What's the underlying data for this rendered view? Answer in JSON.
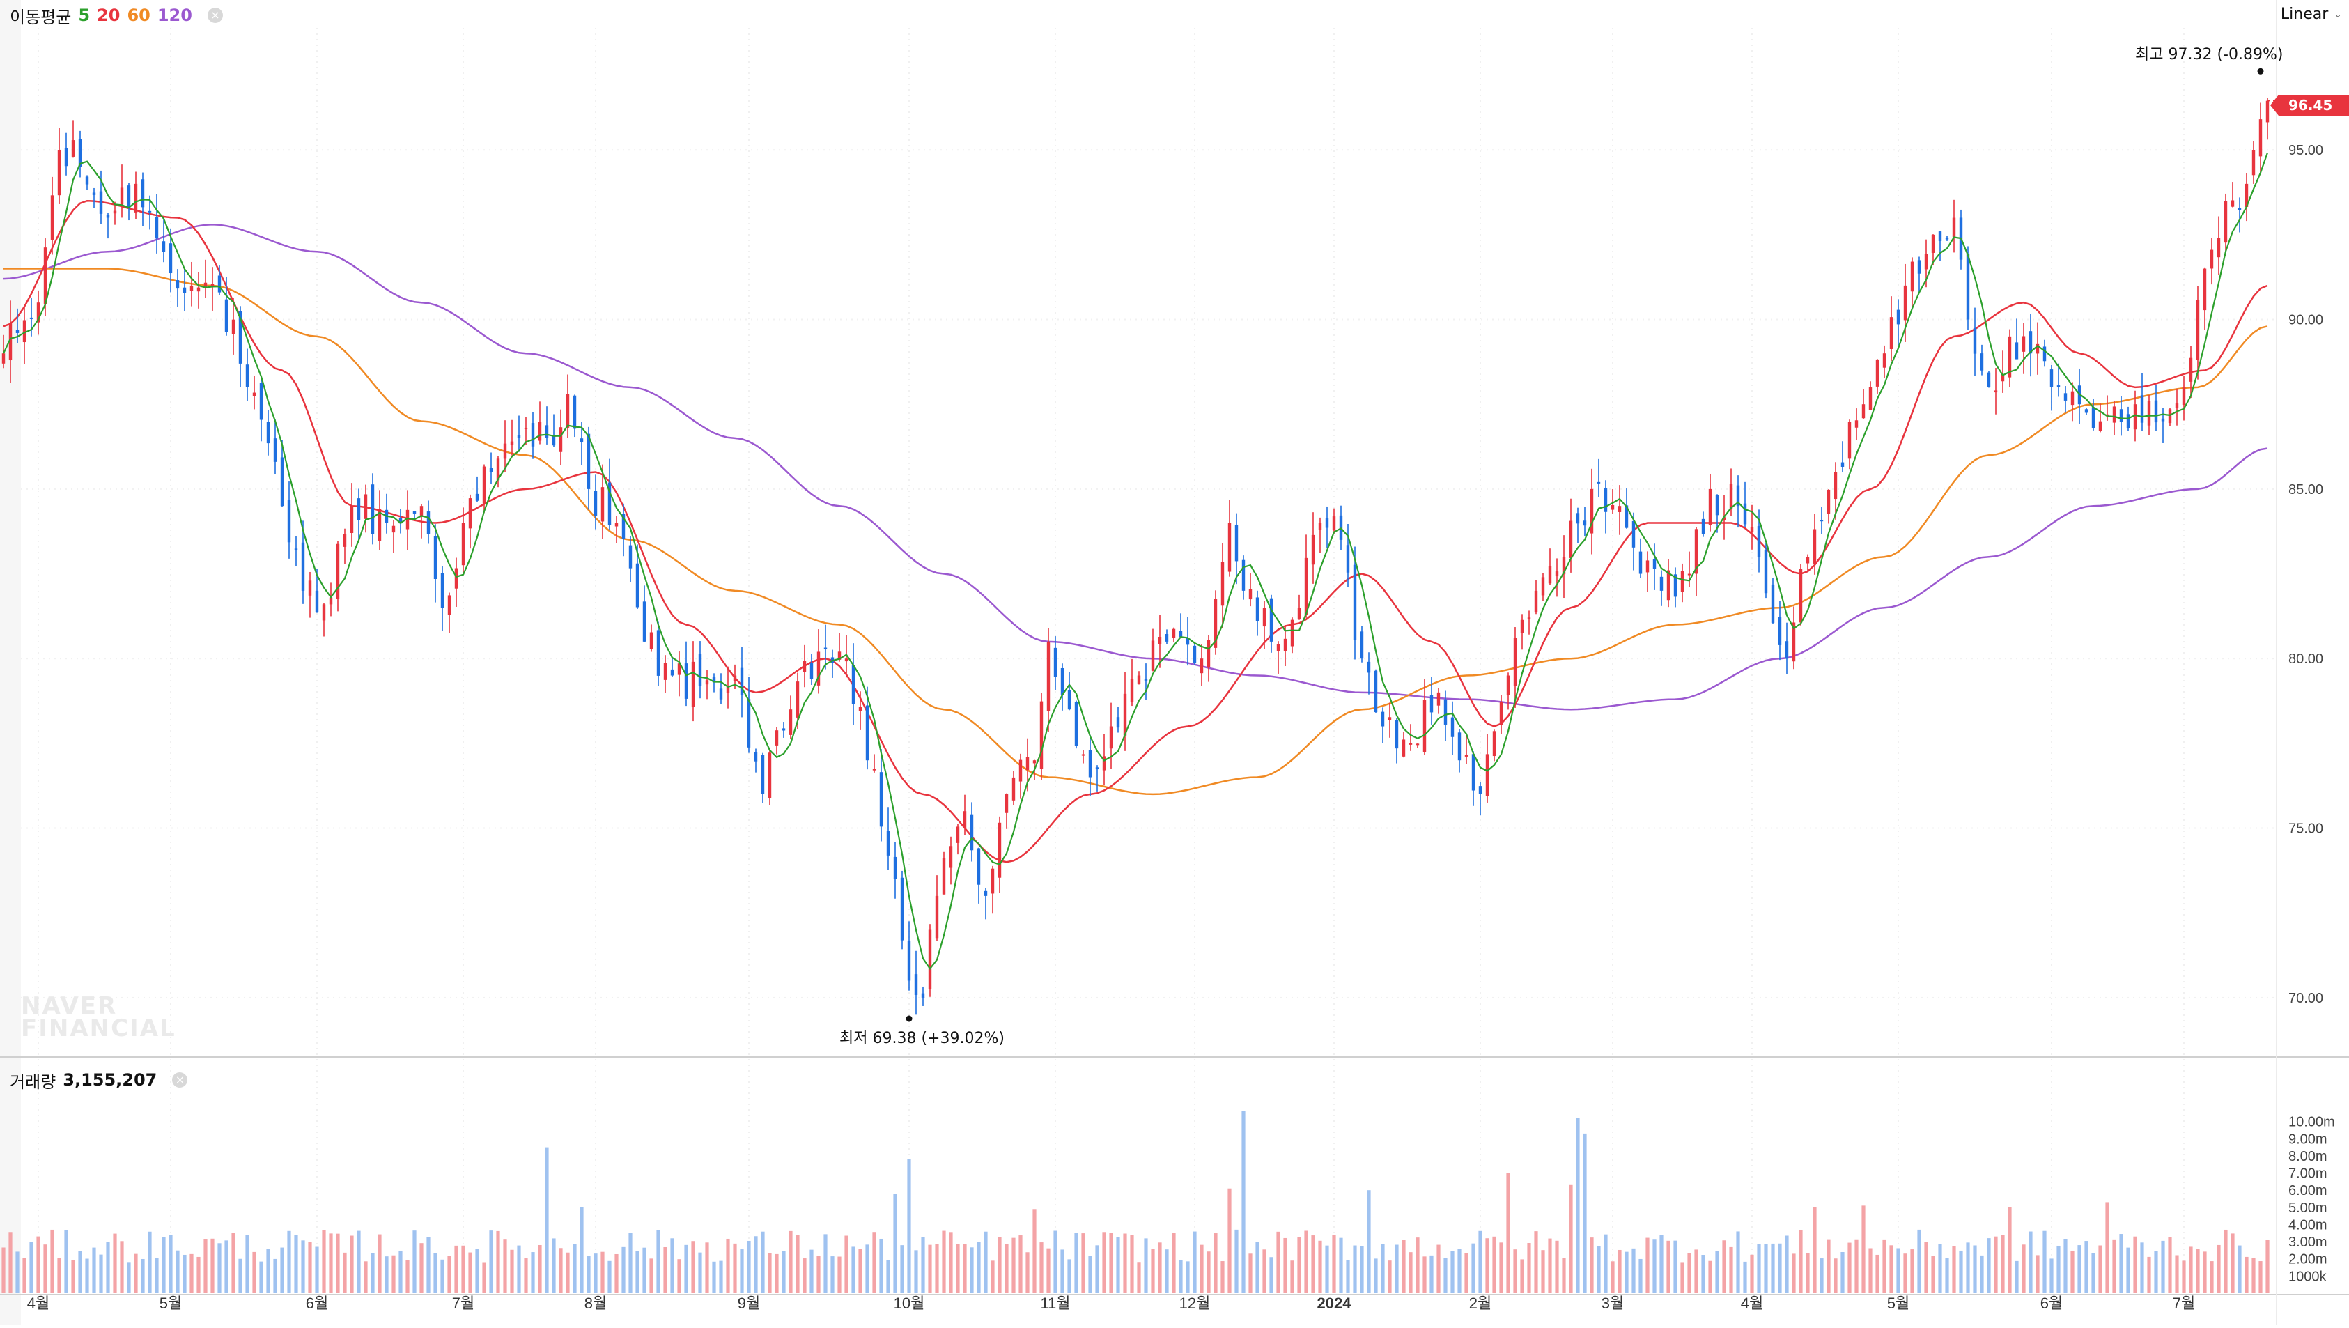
{
  "indicator_legend": {
    "title": "이동평균",
    "periods": [
      {
        "label": "5",
        "color": "#2ca02c"
      },
      {
        "label": "20",
        "color": "#e8343e"
      },
      {
        "label": "60",
        "color": "#f08a24"
      },
      {
        "label": "120",
        "color": "#9b59d0"
      }
    ],
    "close_symbol": "×"
  },
  "scale_toggle": {
    "label": "Linear",
    "chevron": "⌄"
  },
  "current_price_tag": "96.45",
  "volume_legend": {
    "title": "거래량",
    "value": "3,155,207",
    "close_symbol": "×"
  },
  "watermark": {
    "line1": "NAVER",
    "line2": "FINANCIAL"
  },
  "colors": {
    "up": "#e8343e",
    "down": "#1e6fe0",
    "ma5": "#2ca02c",
    "ma20": "#e8343e",
    "ma60": "#f08a24",
    "ma120": "#9b59d0",
    "volume_up": "#f4a3a6",
    "volume_down": "#9fc2f0"
  },
  "chart_data": {
    "type": "candlestick",
    "title": "",
    "xlabel": "",
    "ylabel": "",
    "ylim": [
      68.6,
      98.6
    ],
    "yticks": [
      "95.00",
      "90.00",
      "85.00",
      "80.00",
      "75.00",
      "70.00"
    ],
    "ytick_values": [
      95,
      90,
      85,
      80,
      75,
      70
    ],
    "months": [
      "4월",
      "5월",
      "6월",
      "7월",
      "8월",
      "9월",
      "10월",
      "11월",
      "12월",
      "2024",
      "2월",
      "3월",
      "4월",
      "5월",
      "6월",
      "7월"
    ],
    "month_start_index": [
      5,
      24,
      45,
      66,
      85,
      107,
      130,
      151,
      171,
      191,
      212,
      231,
      251,
      272,
      294,
      313
    ],
    "price_anchors": [
      {
        "i": 0,
        "close": 89.0
      },
      {
        "i": 5,
        "close": 90.5
      },
      {
        "i": 8,
        "close": 95.0
      },
      {
        "i": 11,
        "close": 94.5
      },
      {
        "i": 15,
        "close": 93.0
      },
      {
        "i": 19,
        "close": 94.0
      },
      {
        "i": 23,
        "close": 92.0
      },
      {
        "i": 27,
        "close": 91.0
      },
      {
        "i": 31,
        "close": 90.8
      },
      {
        "i": 35,
        "close": 88.0
      },
      {
        "i": 40,
        "close": 84.5
      },
      {
        "i": 43,
        "close": 82.0
      },
      {
        "i": 46,
        "close": 81.6
      },
      {
        "i": 50,
        "close": 84.5
      },
      {
        "i": 55,
        "close": 84.0
      },
      {
        "i": 60,
        "close": 84.5
      },
      {
        "i": 63,
        "close": 81.5
      },
      {
        "i": 66,
        "close": 84.0
      },
      {
        "i": 70,
        "close": 85.5
      },
      {
        "i": 74,
        "close": 86.5
      },
      {
        "i": 78,
        "close": 86.5
      },
      {
        "i": 81,
        "close": 87.8
      },
      {
        "i": 84,
        "close": 85.0
      },
      {
        "i": 88,
        "close": 84.0
      },
      {
        "i": 92,
        "close": 80.5
      },
      {
        "i": 96,
        "close": 79.5
      },
      {
        "i": 100,
        "close": 79.2
      },
      {
        "i": 105,
        "close": 79.5
      },
      {
        "i": 109,
        "close": 76.0
      },
      {
        "i": 113,
        "close": 78.5
      },
      {
        "i": 117,
        "close": 80.2
      },
      {
        "i": 121,
        "close": 80.0
      },
      {
        "i": 124,
        "close": 77.0
      },
      {
        "i": 128,
        "close": 73.5
      },
      {
        "i": 130,
        "close": 70.5
      },
      {
        "i": 132,
        "close": 70.0
      },
      {
        "i": 134,
        "close": 73.0
      },
      {
        "i": 138,
        "close": 75.5
      },
      {
        "i": 141,
        "close": 73.0
      },
      {
        "i": 144,
        "close": 76.0
      },
      {
        "i": 148,
        "close": 77.0
      },
      {
        "i": 150,
        "close": 80.5
      },
      {
        "i": 153,
        "close": 78.5
      },
      {
        "i": 156,
        "close": 76.5
      },
      {
        "i": 159,
        "close": 78.0
      },
      {
        "i": 163,
        "close": 79.5
      },
      {
        "i": 167,
        "close": 80.5
      },
      {
        "i": 172,
        "close": 80.0
      },
      {
        "i": 176,
        "close": 84.0
      },
      {
        "i": 178,
        "close": 82.0
      },
      {
        "i": 182,
        "close": 80.5
      },
      {
        "i": 186,
        "close": 81.5
      },
      {
        "i": 189,
        "close": 84.0
      },
      {
        "i": 192,
        "close": 83.5
      },
      {
        "i": 195,
        "close": 80.0
      },
      {
        "i": 198,
        "close": 78.0
      },
      {
        "i": 202,
        "close": 77.5
      },
      {
        "i": 206,
        "close": 79.0
      },
      {
        "i": 209,
        "close": 77.0
      },
      {
        "i": 212,
        "close": 76.0
      },
      {
        "i": 216,
        "close": 79.5
      },
      {
        "i": 220,
        "close": 82.0
      },
      {
        "i": 224,
        "close": 83.0
      },
      {
        "i": 228,
        "close": 85.0
      },
      {
        "i": 232,
        "close": 84.5
      },
      {
        "i": 235,
        "close": 82.5
      },
      {
        "i": 238,
        "close": 82.0
      },
      {
        "i": 242,
        "close": 82.5
      },
      {
        "i": 245,
        "close": 85.0
      },
      {
        "i": 249,
        "close": 84.5
      },
      {
        "i": 252,
        "close": 83.0
      },
      {
        "i": 256,
        "close": 80.0
      },
      {
        "i": 259,
        "close": 83.0
      },
      {
        "i": 263,
        "close": 85.5
      },
      {
        "i": 267,
        "close": 87.5
      },
      {
        "i": 270,
        "close": 89.0
      },
      {
        "i": 273,
        "close": 91.0
      },
      {
        "i": 277,
        "close": 92.5
      },
      {
        "i": 280,
        "close": 93.0
      },
      {
        "i": 282,
        "close": 90.0
      },
      {
        "i": 285,
        "close": 88.0
      },
      {
        "i": 288,
        "close": 89.5
      },
      {
        "i": 291,
        "close": 89.0
      },
      {
        "i": 294,
        "close": 88.0
      },
      {
        "i": 298,
        "close": 87.5
      },
      {
        "i": 302,
        "close": 87.2
      },
      {
        "i": 306,
        "close": 87.5
      },
      {
        "i": 310,
        "close": 87.0
      },
      {
        "i": 313,
        "close": 88.0
      },
      {
        "i": 316,
        "close": 91.5
      },
      {
        "i": 319,
        "close": 93.5
      },
      {
        "i": 322,
        "close": 94.0
      },
      {
        "i": 325,
        "close": 96.45
      }
    ],
    "ma_anchors": {
      "ma20": [
        [
          0,
          89.8
        ],
        [
          12,
          93.5
        ],
        [
          25,
          93.0
        ],
        [
          40,
          88.5
        ],
        [
          50,
          84.5
        ],
        [
          62,
          84.0
        ],
        [
          75,
          85.0
        ],
        [
          85,
          85.5
        ],
        [
          98,
          81.0
        ],
        [
          108,
          79.0
        ],
        [
          118,
          80.0
        ],
        [
          132,
          76.0
        ],
        [
          144,
          74.0
        ],
        [
          156,
          76.0
        ],
        [
          170,
          78.0
        ],
        [
          185,
          81.0
        ],
        [
          195,
          82.5
        ],
        [
          205,
          80.5
        ],
        [
          214,
          78.0
        ],
        [
          225,
          81.5
        ],
        [
          236,
          84.0
        ],
        [
          248,
          84.0
        ],
        [
          258,
          82.5
        ],
        [
          268,
          85.0
        ],
        [
          280,
          89.5
        ],
        [
          290,
          90.5
        ],
        [
          298,
          89.0
        ],
        [
          306,
          88.0
        ],
        [
          316,
          88.5
        ],
        [
          325,
          91.0
        ]
      ],
      "ma60": [
        [
          0,
          91.5
        ],
        [
          15,
          91.5
        ],
        [
          30,
          91.0
        ],
        [
          45,
          89.5
        ],
        [
          60,
          87.0
        ],
        [
          75,
          86.0
        ],
        [
          90,
          83.5
        ],
        [
          105,
          82.0
        ],
        [
          120,
          81.0
        ],
        [
          135,
          78.5
        ],
        [
          150,
          76.5
        ],
        [
          165,
          76.0
        ],
        [
          180,
          76.5
        ],
        [
          195,
          78.5
        ],
        [
          210,
          79.5
        ],
        [
          225,
          80.0
        ],
        [
          240,
          81.0
        ],
        [
          255,
          81.5
        ],
        [
          270,
          83.0
        ],
        [
          285,
          86.0
        ],
        [
          300,
          87.5
        ],
        [
          315,
          88.0
        ],
        [
          325,
          89.8
        ]
      ],
      "ma120": [
        [
          0,
          91.2
        ],
        [
          15,
          92.0
        ],
        [
          30,
          92.8
        ],
        [
          45,
          92.0
        ],
        [
          60,
          90.5
        ],
        [
          75,
          89.0
        ],
        [
          90,
          88.0
        ],
        [
          105,
          86.5
        ],
        [
          120,
          84.5
        ],
        [
          135,
          82.5
        ],
        [
          150,
          80.5
        ],
        [
          165,
          80.0
        ],
        [
          180,
          79.5
        ],
        [
          195,
          79.0
        ],
        [
          210,
          78.8
        ],
        [
          225,
          78.5
        ],
        [
          240,
          78.8
        ],
        [
          255,
          80.0
        ],
        [
          270,
          81.5
        ],
        [
          285,
          83.0
        ],
        [
          300,
          84.5
        ],
        [
          315,
          85.0
        ],
        [
          325,
          86.2
        ]
      ]
    },
    "volume_ylim_m": [
      0,
      11.0
    ],
    "volume_ticks": [
      "10.00m",
      "9.00m",
      "8.00m",
      "7.00m",
      "6.00m",
      "5.00m",
      "4.00m",
      "3.00m",
      "2.00m",
      "1000k"
    ],
    "volume_tick_values_m": [
      10,
      9,
      8,
      7,
      6,
      5,
      4,
      3,
      2,
      1
    ],
    "volume_spikes": [
      {
        "i": 78,
        "v": 8.5
      },
      {
        "i": 83,
        "v": 5.0
      },
      {
        "i": 128,
        "v": 5.8
      },
      {
        "i": 130,
        "v": 7.8
      },
      {
        "i": 148,
        "v": 4.9
      },
      {
        "i": 178,
        "v": 10.6
      },
      {
        "i": 176,
        "v": 6.1
      },
      {
        "i": 196,
        "v": 6.0
      },
      {
        "i": 216,
        "v": 7.0
      },
      {
        "i": 226,
        "v": 10.2
      },
      {
        "i": 227,
        "v": 9.3
      },
      {
        "i": 225,
        "v": 6.3
      },
      {
        "i": 260,
        "v": 5.0
      },
      {
        "i": 267,
        "v": 5.1
      },
      {
        "i": 288,
        "v": 5.0
      },
      {
        "i": 302,
        "v": 5.3
      }
    ],
    "current_volume": "3,155,207",
    "annotations": {
      "high": {
        "label": "최고",
        "value": "97.32 (-0.89%)",
        "price": 97.32,
        "i": 324
      },
      "low": {
        "label": "최저",
        "value": "69.38 (+39.02%)",
        "price": 69.38,
        "i": 130
      }
    }
  }
}
